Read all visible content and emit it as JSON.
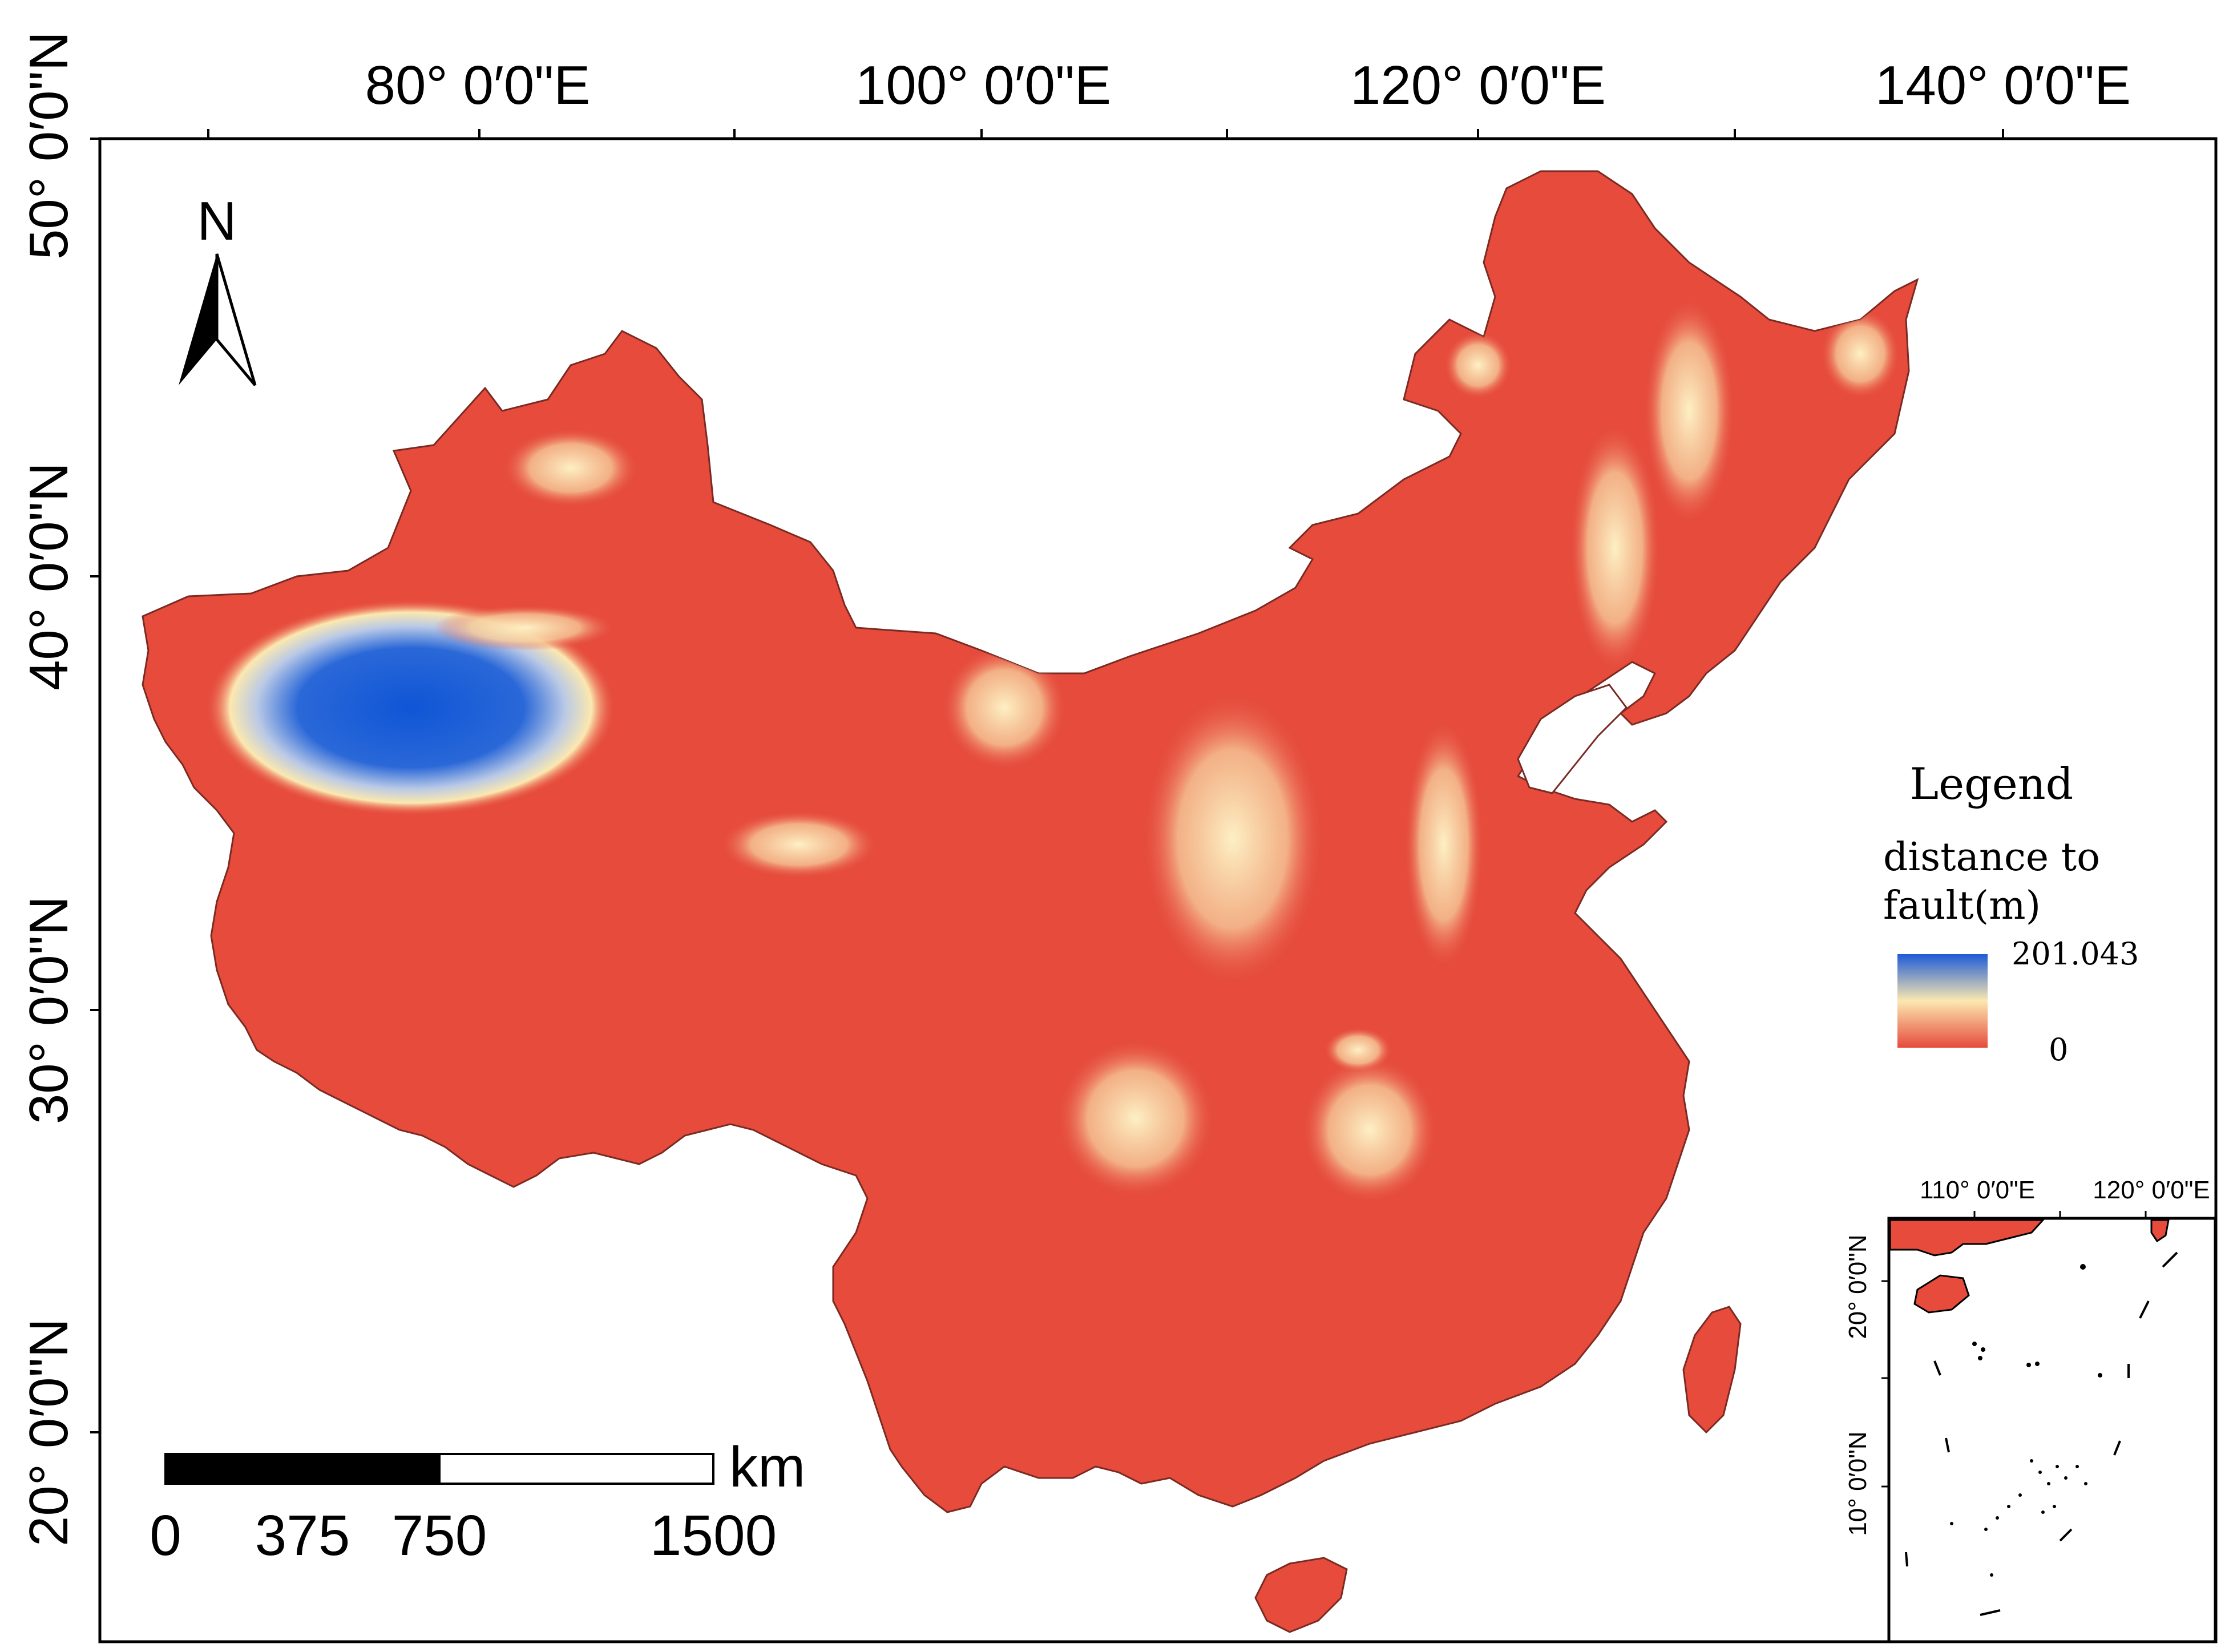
{
  "map": {
    "top_longitude_labels": [
      "80°  0′0\"E",
      "100°  0′0\"E",
      "120°  0′0\"E",
      "140°  0′0\"E"
    ],
    "left_latitude_labels": [
      "50°  0′0\"N",
      "40°  0′0\"N",
      "30°  0′0\"N",
      "20°  0′0\"N"
    ],
    "north_arrow_label": "N",
    "colors": {
      "land": "#e64b3c",
      "low": "#e64b3c",
      "mid": "#fbe8b0",
      "high": "#1e5bd6",
      "frame": "#000000"
    }
  },
  "legend": {
    "title": "Legend",
    "field_line1": "distance to",
    "field_line2": "fault(m)",
    "max_value": "201.043",
    "min_value": "0"
  },
  "scale_bar": {
    "unit": "km",
    "ticks": [
      "0",
      "375",
      "750",
      "1500"
    ]
  },
  "inset": {
    "top_labels": [
      "110°  0′0\"E",
      "120°  0′0\"E"
    ],
    "left_labels": [
      "20°  0′0\"N",
      "10°  0′0\"N"
    ]
  }
}
